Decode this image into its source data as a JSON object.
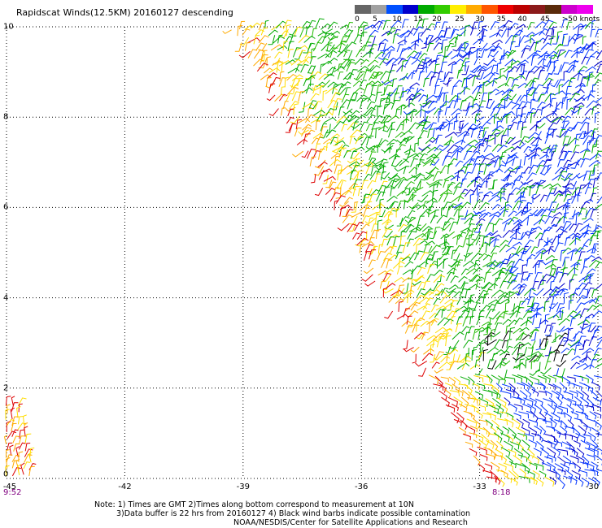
{
  "title": "Rapidscat Winds(12.5KM) 20160127 descending",
  "colorbar": {
    "labels": [
      "0",
      "5",
      "10",
      "15",
      "20",
      "25",
      "30",
      "35",
      "40",
      "45",
      ">50 knots"
    ],
    "colors": [
      "#666666",
      "#a0a0a0",
      "#0050ff",
      "#0000cc",
      "#00aa00",
      "#33cc00",
      "#ffee00",
      "#ffaa00",
      "#ff5500",
      "#ee0000",
      "#bb0000",
      "#8b1a1a",
      "#5a2a0a",
      "#cc00cc",
      "#ee00ee"
    ]
  },
  "axes": {
    "x_ticks": [
      "-45",
      "-42",
      "-39",
      "-36",
      "-33",
      "-30"
    ],
    "y_ticks": [
      "10",
      "8",
      "6",
      "4",
      "2",
      "0"
    ],
    "x_range": [
      -45,
      -30
    ],
    "y_range": [
      0,
      10
    ]
  },
  "times": {
    "left": "9:52",
    "right": "8:18"
  },
  "notes": [
    "Note: 1) Times are GMT 2)Times along bottom correspond to measurement at 10N",
    "3)Data buffer is 22 hrs from 20160127 4) Black wind barbs indicate possible contamination",
    "NOAA/NESDIS/Center for Satellite Applications and Research"
  ],
  "swath": {
    "edge_lon_at_lat10": -39.3,
    "edge_lon_at_lat0": -32.8,
    "left_patch_max_lon": -44.3,
    "speed_classes": [
      "#dd0000",
      "#ffaa00",
      "#ffdd00",
      "#00aa00",
      "#22bb00",
      "#0033ff",
      "#0000cc",
      "#000000"
    ]
  }
}
